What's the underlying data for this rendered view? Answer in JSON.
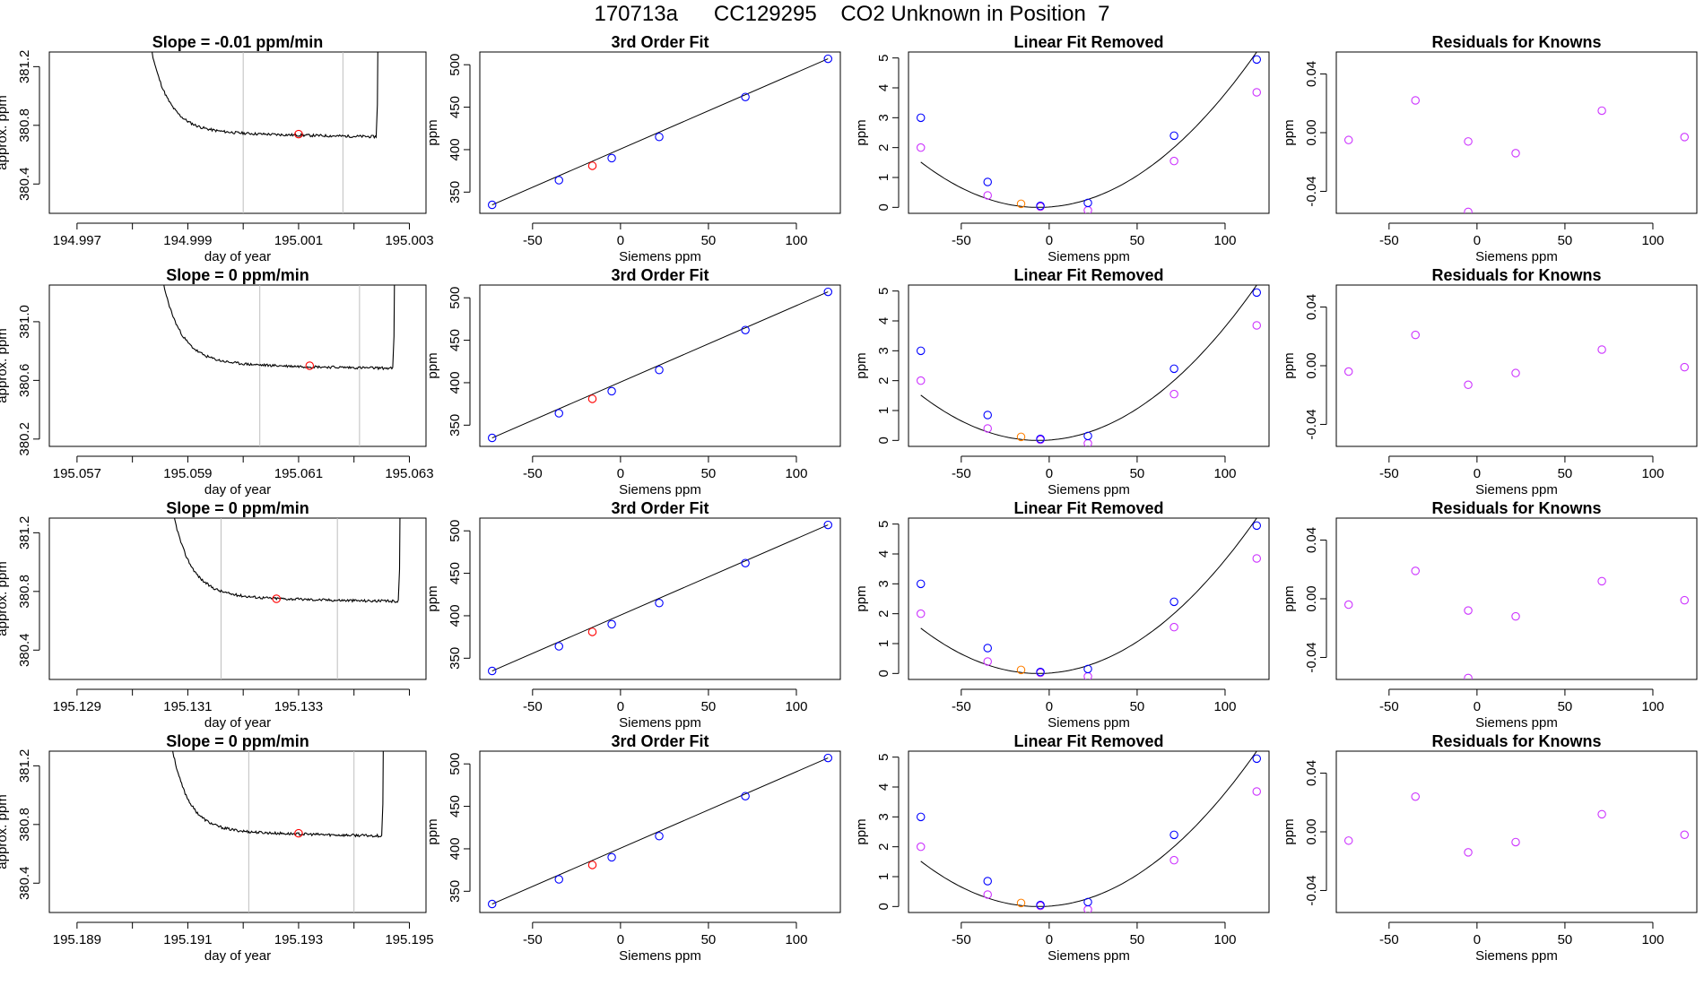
{
  "page_title": "170713a      CC129295    CO2 Unknown in Position  7",
  "colors": {
    "trace": "#000000",
    "window_line": "#bebebe",
    "unknown_marker": "#ff0000",
    "unknown_fit_marker": "#ff7f00",
    "known_marker": "#0000ff",
    "residual_marker": "#cc33ff",
    "fit_curve": "#000000"
  },
  "chart_data": [
    {
      "type": "line",
      "title": "Slope =  -0.01  ppm/min",
      "xlabel": "day of year",
      "ylabel": "approx. ppm",
      "xlim": [
        194.9965,
        195.0033
      ],
      "ylim": [
        380.2,
        381.3
      ],
      "xticks": [
        194.997,
        194.998,
        194.999,
        195.0,
        195.001,
        195.002,
        195.003
      ],
      "xtick_labels": [
        "194.997",
        "",
        "194.999",
        "",
        "195.001",
        "",
        "195.003"
      ],
      "yticks": [
        380.4,
        380.8,
        381.2
      ],
      "ytick_labels": [
        "380.4",
        "380.8",
        "381.2"
      ],
      "window": [
        195.0,
        195.0018
      ],
      "unknown_point": {
        "x": 195.001,
        "y": 380.74
      },
      "trace_start": 194.998,
      "trace_end": 195.0024,
      "plateau": 380.74,
      "trace_seed": 11
    },
    {
      "type": "line",
      "title": "3rd Order Fit",
      "xlabel": "Siemens ppm",
      "ylabel": "ppm",
      "xlim": [
        -80,
        125
      ],
      "ylim": [
        325,
        515
      ],
      "xticks": [
        -50,
        0,
        50,
        100
      ],
      "xtick_labels": [
        "-50",
        "0",
        "50",
        "100"
      ],
      "yticks": [
        350,
        400,
        450,
        500
      ],
      "ytick_labels": [
        "350",
        "400",
        "450",
        "500"
      ],
      "knowns": [
        {
          "x": -73,
          "y": 335
        },
        {
          "x": -35,
          "y": 364
        },
        {
          "x": -5,
          "y": 390
        },
        {
          "x": 22,
          "y": 415
        },
        {
          "x": 71,
          "y": 462
        },
        {
          "x": 118,
          "y": 507
        }
      ],
      "unknown": {
        "x": -16,
        "y": 381
      }
    },
    {
      "type": "scatter",
      "title": "Linear Fit Removed",
      "xlabel": "Siemens ppm",
      "ylabel": "ppm",
      "xlim": [
        -80,
        125
      ],
      "ylim": [
        -0.2,
        5.2
      ],
      "xticks": [
        -50,
        0,
        50,
        100
      ],
      "xtick_labels": [
        "-50",
        "0",
        "50",
        "100"
      ],
      "yticks": [
        0,
        1,
        2,
        3,
        4,
        5
      ],
      "ytick_labels": [
        "0",
        "1",
        "2",
        "3",
        "4",
        "5"
      ],
      "knowns": [
        {
          "x": -73,
          "y": 3.0
        },
        {
          "x": -35,
          "y": 0.85
        },
        {
          "x": -5,
          "y": 0.05
        },
        {
          "x": 22,
          "y": 0.15
        },
        {
          "x": 71,
          "y": 2.4
        },
        {
          "x": 118,
          "y": 4.95
        }
      ],
      "residual_points": [
        {
          "x": -73,
          "y": 2.0
        },
        {
          "x": -35,
          "y": 0.4
        },
        {
          "x": -5,
          "y": 0.02
        },
        {
          "x": 22,
          "y": -0.1
        },
        {
          "x": 71,
          "y": 1.55
        },
        {
          "x": 118,
          "y": 3.85
        }
      ],
      "unknown": {
        "x": -16,
        "y": 0.12
      },
      "fit_coeffs": [
        0.0,
        0.0007,
        0.000338
      ]
    },
    {
      "type": "scatter",
      "title": "Residuals for Knowns",
      "xlabel": "Siemens ppm",
      "ylabel": "ppm",
      "xlim": [
        -80,
        125
      ],
      "ylim": [
        -0.055,
        0.055
      ],
      "xticks": [
        -50,
        0,
        50,
        100
      ],
      "xtick_labels": [
        "-50",
        "0",
        "50",
        "100"
      ],
      "yticks": [
        -0.04,
        0.0,
        0.04
      ],
      "ytick_labels": [
        "-0.04",
        "0.00",
        "0.04"
      ],
      "points": [
        {
          "x": -73,
          "y": -0.005
        },
        {
          "x": -35,
          "y": 0.022
        },
        {
          "x": -5,
          "y": -0.006
        },
        {
          "x": 22,
          "y": -0.014
        },
        {
          "x": 71,
          "y": 0.015
        },
        {
          "x": 118,
          "y": -0.003
        },
        {
          "x": -5,
          "y": -0.054
        }
      ]
    },
    {
      "type": "line",
      "title": "Slope =  0  ppm/min",
      "xlabel": "day of year",
      "ylabel": "approx. ppm",
      "xlim": [
        195.0565,
        195.0633
      ],
      "ylim": [
        380.15,
        381.25
      ],
      "xticks": [
        195.057,
        195.058,
        195.059,
        195.06,
        195.061,
        195.062,
        195.063
      ],
      "xtick_labels": [
        "195.057",
        "",
        "195.059",
        "",
        "195.061",
        "",
        "195.063"
      ],
      "yticks": [
        380.2,
        380.6,
        381.0
      ],
      "ytick_labels": [
        "380.2",
        "380.6",
        "381.0"
      ],
      "window": [
        195.0603,
        195.0621
      ],
      "unknown_point": {
        "x": 195.0612,
        "y": 380.7
      },
      "trace_start": 195.0582,
      "trace_end": 195.0627,
      "plateau": 380.7,
      "trace_seed": 23
    },
    {
      "type": "line",
      "title": "3rd Order Fit",
      "xlabel": "Siemens ppm",
      "ylabel": "ppm",
      "xlim": [
        -80,
        125
      ],
      "ylim": [
        325,
        515
      ],
      "xticks": [
        -50,
        0,
        50,
        100
      ],
      "xtick_labels": [
        "-50",
        "0",
        "50",
        "100"
      ],
      "yticks": [
        350,
        400,
        450,
        500
      ],
      "ytick_labels": [
        "350",
        "400",
        "450",
        "500"
      ],
      "knowns": [
        {
          "x": -73,
          "y": 335
        },
        {
          "x": -35,
          "y": 364
        },
        {
          "x": -5,
          "y": 390
        },
        {
          "x": 22,
          "y": 415
        },
        {
          "x": 71,
          "y": 462
        },
        {
          "x": 118,
          "y": 507
        }
      ],
      "unknown": {
        "x": -16,
        "y": 381
      }
    },
    {
      "type": "scatter",
      "title": "Linear Fit Removed",
      "xlabel": "Siemens ppm",
      "ylabel": "ppm",
      "xlim": [
        -80,
        125
      ],
      "ylim": [
        -0.2,
        5.2
      ],
      "xticks": [
        -50,
        0,
        50,
        100
      ],
      "xtick_labels": [
        "-50",
        "0",
        "50",
        "100"
      ],
      "yticks": [
        0,
        1,
        2,
        3,
        4,
        5
      ],
      "ytick_labels": [
        "0",
        "1",
        "2",
        "3",
        "4",
        "5"
      ],
      "knowns": [
        {
          "x": -73,
          "y": 3.0
        },
        {
          "x": -35,
          "y": 0.85
        },
        {
          "x": -5,
          "y": 0.05
        },
        {
          "x": 22,
          "y": 0.15
        },
        {
          "x": 71,
          "y": 2.4
        },
        {
          "x": 118,
          "y": 4.95
        }
      ],
      "residual_points": [
        {
          "x": -73,
          "y": 2.0
        },
        {
          "x": -35,
          "y": 0.4
        },
        {
          "x": -5,
          "y": 0.02
        },
        {
          "x": 22,
          "y": -0.1
        },
        {
          "x": 71,
          "y": 1.55
        },
        {
          "x": 118,
          "y": 3.85
        }
      ],
      "unknown": {
        "x": -16,
        "y": 0.12
      },
      "fit_coeffs": [
        0.0,
        0.0007,
        0.000338
      ]
    },
    {
      "type": "scatter",
      "title": "Residuals for Knowns",
      "xlabel": "Siemens ppm",
      "ylabel": "ppm",
      "xlim": [
        -80,
        125
      ],
      "ylim": [
        -0.055,
        0.055
      ],
      "xticks": [
        -50,
        0,
        50,
        100
      ],
      "xtick_labels": [
        "-50",
        "0",
        "50",
        "100"
      ],
      "yticks": [
        -0.04,
        0.0,
        0.04
      ],
      "ytick_labels": [
        "-0.04",
        "0.00",
        "0.04"
      ],
      "points": [
        {
          "x": -73,
          "y": -0.004
        },
        {
          "x": -35,
          "y": 0.021
        },
        {
          "x": -5,
          "y": -0.013
        },
        {
          "x": 22,
          "y": -0.005
        },
        {
          "x": 71,
          "y": 0.011
        },
        {
          "x": 118,
          "y": -0.001
        }
      ]
    },
    {
      "type": "line",
      "title": "Slope =  0  ppm/min",
      "xlabel": "day of year",
      "ylabel": "approx. ppm",
      "xlim": [
        195.1285,
        195.1353
      ],
      "ylim": [
        380.2,
        381.3
      ],
      "xticks": [
        195.129,
        195.13,
        195.131,
        195.132,
        195.133,
        195.134,
        195.135
      ],
      "xtick_labels": [
        "195.129",
        "",
        "195.131",
        "",
        "195.133",
        "",
        ""
      ],
      "yticks": [
        380.4,
        380.8,
        381.2
      ],
      "ytick_labels": [
        "380.4",
        "380.8",
        "381.2"
      ],
      "window": [
        195.1316,
        195.1337
      ],
      "unknown_point": {
        "x": 195.1326,
        "y": 380.75
      },
      "trace_start": 195.1304,
      "trace_end": 195.1348,
      "plateau": 380.75,
      "trace_seed": 37
    },
    {
      "type": "line",
      "title": "3rd Order Fit",
      "xlabel": "Siemens ppm",
      "ylabel": "ppm",
      "xlim": [
        -80,
        125
      ],
      "ylim": [
        325,
        515
      ],
      "xticks": [
        -50,
        0,
        50,
        100
      ],
      "xtick_labels": [
        "-50",
        "0",
        "50",
        "100"
      ],
      "yticks": [
        350,
        400,
        450,
        500
      ],
      "ytick_labels": [
        "350",
        "400",
        "450",
        "500"
      ],
      "knowns": [
        {
          "x": -73,
          "y": 335
        },
        {
          "x": -35,
          "y": 364
        },
        {
          "x": -5,
          "y": 390
        },
        {
          "x": 22,
          "y": 415
        },
        {
          "x": 71,
          "y": 462
        },
        {
          "x": 118,
          "y": 507
        }
      ],
      "unknown": {
        "x": -16,
        "y": 381
      }
    },
    {
      "type": "scatter",
      "title": "Linear Fit Removed",
      "xlabel": "Siemens ppm",
      "ylabel": "ppm",
      "xlim": [
        -80,
        125
      ],
      "ylim": [
        -0.2,
        5.2
      ],
      "xticks": [
        -50,
        0,
        50,
        100
      ],
      "xtick_labels": [
        "-50",
        "0",
        "50",
        "100"
      ],
      "yticks": [
        0,
        1,
        2,
        3,
        4,
        5
      ],
      "ytick_labels": [
        "0",
        "1",
        "2",
        "3",
        "4",
        "5"
      ],
      "knowns": [
        {
          "x": -73,
          "y": 3.0
        },
        {
          "x": -35,
          "y": 0.85
        },
        {
          "x": -5,
          "y": 0.05
        },
        {
          "x": 22,
          "y": 0.15
        },
        {
          "x": 71,
          "y": 2.4
        },
        {
          "x": 118,
          "y": 4.95
        }
      ],
      "residual_points": [
        {
          "x": -73,
          "y": 2.0
        },
        {
          "x": -35,
          "y": 0.4
        },
        {
          "x": -5,
          "y": 0.02
        },
        {
          "x": 22,
          "y": -0.1
        },
        {
          "x": 71,
          "y": 1.55
        },
        {
          "x": 118,
          "y": 3.85
        }
      ],
      "unknown": {
        "x": -16,
        "y": 0.12
      },
      "fit_coeffs": [
        0.0,
        0.0007,
        0.000338
      ]
    },
    {
      "type": "scatter",
      "title": "Residuals for Knowns",
      "xlabel": "Siemens ppm",
      "ylabel": "ppm",
      "xlim": [
        -80,
        125
      ],
      "ylim": [
        -0.055,
        0.055
      ],
      "xticks": [
        -50,
        0,
        50,
        100
      ],
      "xtick_labels": [
        "-50",
        "0",
        "50",
        "100"
      ],
      "yticks": [
        -0.04,
        0.0,
        0.04
      ],
      "ytick_labels": [
        "-0.04",
        "0.00",
        "0.04"
      ],
      "points": [
        {
          "x": -73,
          "y": -0.004
        },
        {
          "x": -35,
          "y": 0.019
        },
        {
          "x": -5,
          "y": -0.008
        },
        {
          "x": 22,
          "y": -0.012
        },
        {
          "x": 71,
          "y": 0.012
        },
        {
          "x": 118,
          "y": -0.001
        },
        {
          "x": -5,
          "y": -0.054
        }
      ]
    },
    {
      "type": "line",
      "title": "Slope =  0  ppm/min",
      "xlabel": "day of year",
      "ylabel": "approx. ppm",
      "xlim": [
        195.1885,
        195.1953
      ],
      "ylim": [
        380.2,
        381.3
      ],
      "xticks": [
        195.189,
        195.19,
        195.191,
        195.192,
        195.193,
        195.194,
        195.195
      ],
      "xtick_labels": [
        "195.189",
        "",
        "195.191",
        "",
        "195.193",
        "",
        "195.195"
      ],
      "yticks": [
        380.4,
        380.8,
        381.2
      ],
      "ytick_labels": [
        "380.4",
        "380.8",
        "381.2"
      ],
      "window": [
        195.1921,
        195.194
      ],
      "unknown_point": {
        "x": 195.193,
        "y": 380.74
      },
      "trace_start": 195.1904,
      "trace_end": 195.1945,
      "plateau": 380.74,
      "trace_seed": 53
    },
    {
      "type": "line",
      "title": "3rd Order Fit",
      "xlabel": "Siemens ppm",
      "ylabel": "ppm",
      "xlim": [
        -80,
        125
      ],
      "ylim": [
        325,
        515
      ],
      "xticks": [
        -50,
        0,
        50,
        100
      ],
      "xtick_labels": [
        "-50",
        "0",
        "50",
        "100"
      ],
      "yticks": [
        350,
        400,
        450,
        500
      ],
      "ytick_labels": [
        "350",
        "400",
        "450",
        "500"
      ],
      "knowns": [
        {
          "x": -73,
          "y": 335
        },
        {
          "x": -35,
          "y": 364
        },
        {
          "x": -5,
          "y": 390
        },
        {
          "x": 22,
          "y": 415
        },
        {
          "x": 71,
          "y": 462
        },
        {
          "x": 118,
          "y": 507
        }
      ],
      "unknown": {
        "x": -16,
        "y": 381
      }
    },
    {
      "type": "scatter",
      "title": "Linear Fit Removed",
      "xlabel": "Siemens ppm",
      "ylabel": "ppm",
      "xlim": [
        -80,
        125
      ],
      "ylim": [
        -0.2,
        5.2
      ],
      "xticks": [
        -50,
        0,
        50,
        100
      ],
      "xtick_labels": [
        "-50",
        "0",
        "50",
        "100"
      ],
      "yticks": [
        0,
        1,
        2,
        3,
        4,
        5
      ],
      "ytick_labels": [
        "0",
        "1",
        "2",
        "3",
        "4",
        "5"
      ],
      "knowns": [
        {
          "x": -73,
          "y": 3.0
        },
        {
          "x": -35,
          "y": 0.85
        },
        {
          "x": -5,
          "y": 0.05
        },
        {
          "x": 22,
          "y": 0.15
        },
        {
          "x": 71,
          "y": 2.4
        },
        {
          "x": 118,
          "y": 4.95
        }
      ],
      "residual_points": [
        {
          "x": -73,
          "y": 2.0
        },
        {
          "x": -35,
          "y": 0.4
        },
        {
          "x": -5,
          "y": 0.02
        },
        {
          "x": 22,
          "y": -0.1
        },
        {
          "x": 71,
          "y": 1.55
        },
        {
          "x": 118,
          "y": 3.85
        }
      ],
      "unknown": {
        "x": -16,
        "y": 0.12
      },
      "fit_coeffs": [
        0.0,
        0.0007,
        0.000338
      ]
    },
    {
      "type": "scatter",
      "title": "Residuals for Knowns",
      "xlabel": "Siemens ppm",
      "ylabel": "ppm",
      "xlim": [
        -80,
        125
      ],
      "ylim": [
        -0.055,
        0.055
      ],
      "xticks": [
        -50,
        0,
        50,
        100
      ],
      "xtick_labels": [
        "-50",
        "0",
        "50",
        "100"
      ],
      "yticks": [
        -0.04,
        0.0,
        0.04
      ],
      "ytick_labels": [
        "-0.04",
        "0.00",
        "0.04"
      ],
      "points": [
        {
          "x": -73,
          "y": -0.006
        },
        {
          "x": -35,
          "y": 0.024
        },
        {
          "x": -5,
          "y": -0.014
        },
        {
          "x": 22,
          "y": -0.007
        },
        {
          "x": 71,
          "y": 0.012
        },
        {
          "x": 118,
          "y": -0.002
        }
      ]
    }
  ]
}
